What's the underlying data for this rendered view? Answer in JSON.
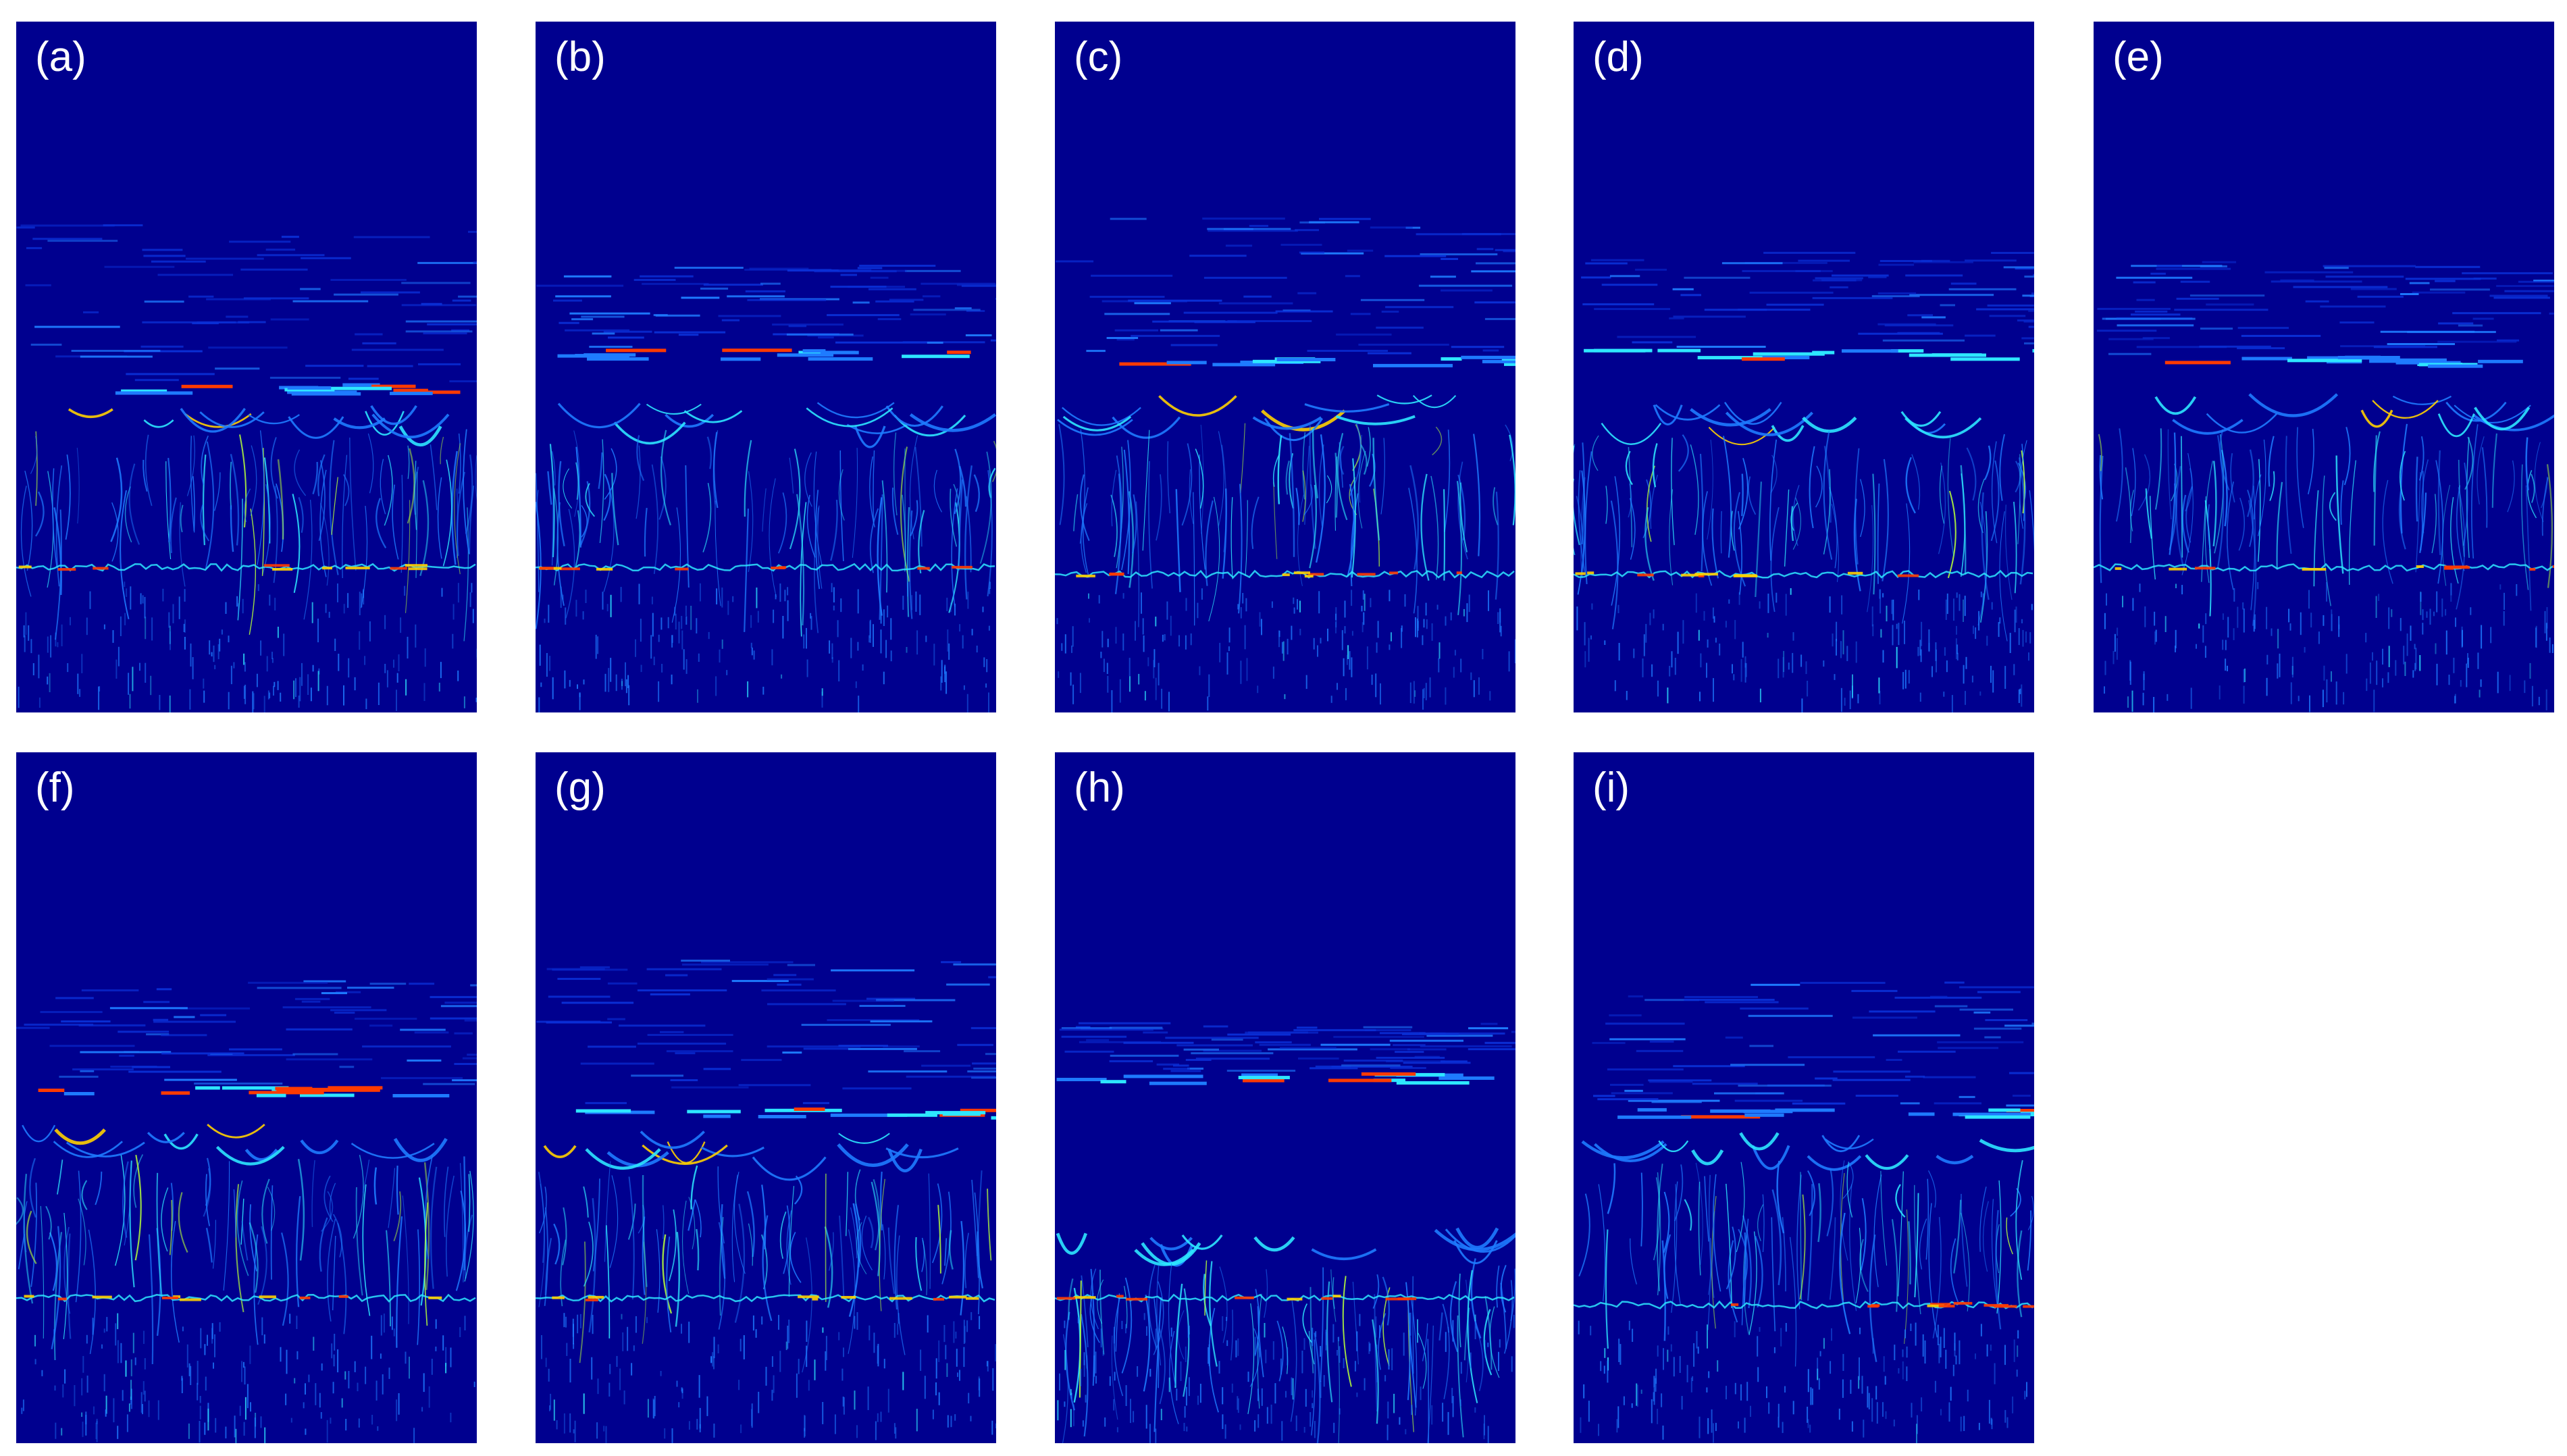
{
  "figure": {
    "colors": {
      "background": "#00008f",
      "low": "#0a2fd6",
      "mid_low": "#1e7bff",
      "mid": "#2ee6ff",
      "mid_high": "#b6ff3a",
      "high": "#ffd000",
      "peak": "#ff3a00",
      "max": "#c00000"
    },
    "colormap": "jet",
    "panels": [
      {
        "id": "a",
        "label": "(a)"
      },
      {
        "id": "b",
        "label": "(b)"
      },
      {
        "id": "c",
        "label": "(c)"
      },
      {
        "id": "d",
        "label": "(d)"
      },
      {
        "id": "e",
        "label": "(e)"
      },
      {
        "id": "f",
        "label": "(f)"
      },
      {
        "id": "g",
        "label": "(g)"
      },
      {
        "id": "h",
        "label": "(h)"
      },
      {
        "id": "i",
        "label": "(i)"
      }
    ]
  }
}
